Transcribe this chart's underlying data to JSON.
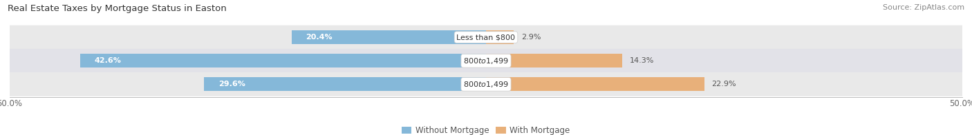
{
  "title": "Real Estate Taxes by Mortgage Status in Easton",
  "source": "Source: ZipAtlas.com",
  "rows": [
    {
      "label": "Less than $800",
      "without_mortgage": 20.4,
      "with_mortgage": 2.9
    },
    {
      "label": "$800 to $1,499",
      "without_mortgage": 42.6,
      "with_mortgage": 14.3
    },
    {
      "label": "$800 to $1,499",
      "without_mortgage": 29.6,
      "with_mortgage": 22.9
    }
  ],
  "xlim": [
    -50,
    50
  ],
  "xtick_left": -50,
  "xtick_right": 50,
  "color_without": "#85b8d9",
  "color_with": "#e8b07a",
  "bg_row_odd": "#e8e8e8",
  "bg_row_even": "#f0f0f0",
  "legend_without": "Without Mortgage",
  "legend_with": "With Mortgage",
  "title_fontsize": 9.5,
  "source_fontsize": 8,
  "tick_fontsize": 8.5,
  "label_fontsize": 8,
  "pct_fontsize": 8,
  "bar_height": 0.58
}
